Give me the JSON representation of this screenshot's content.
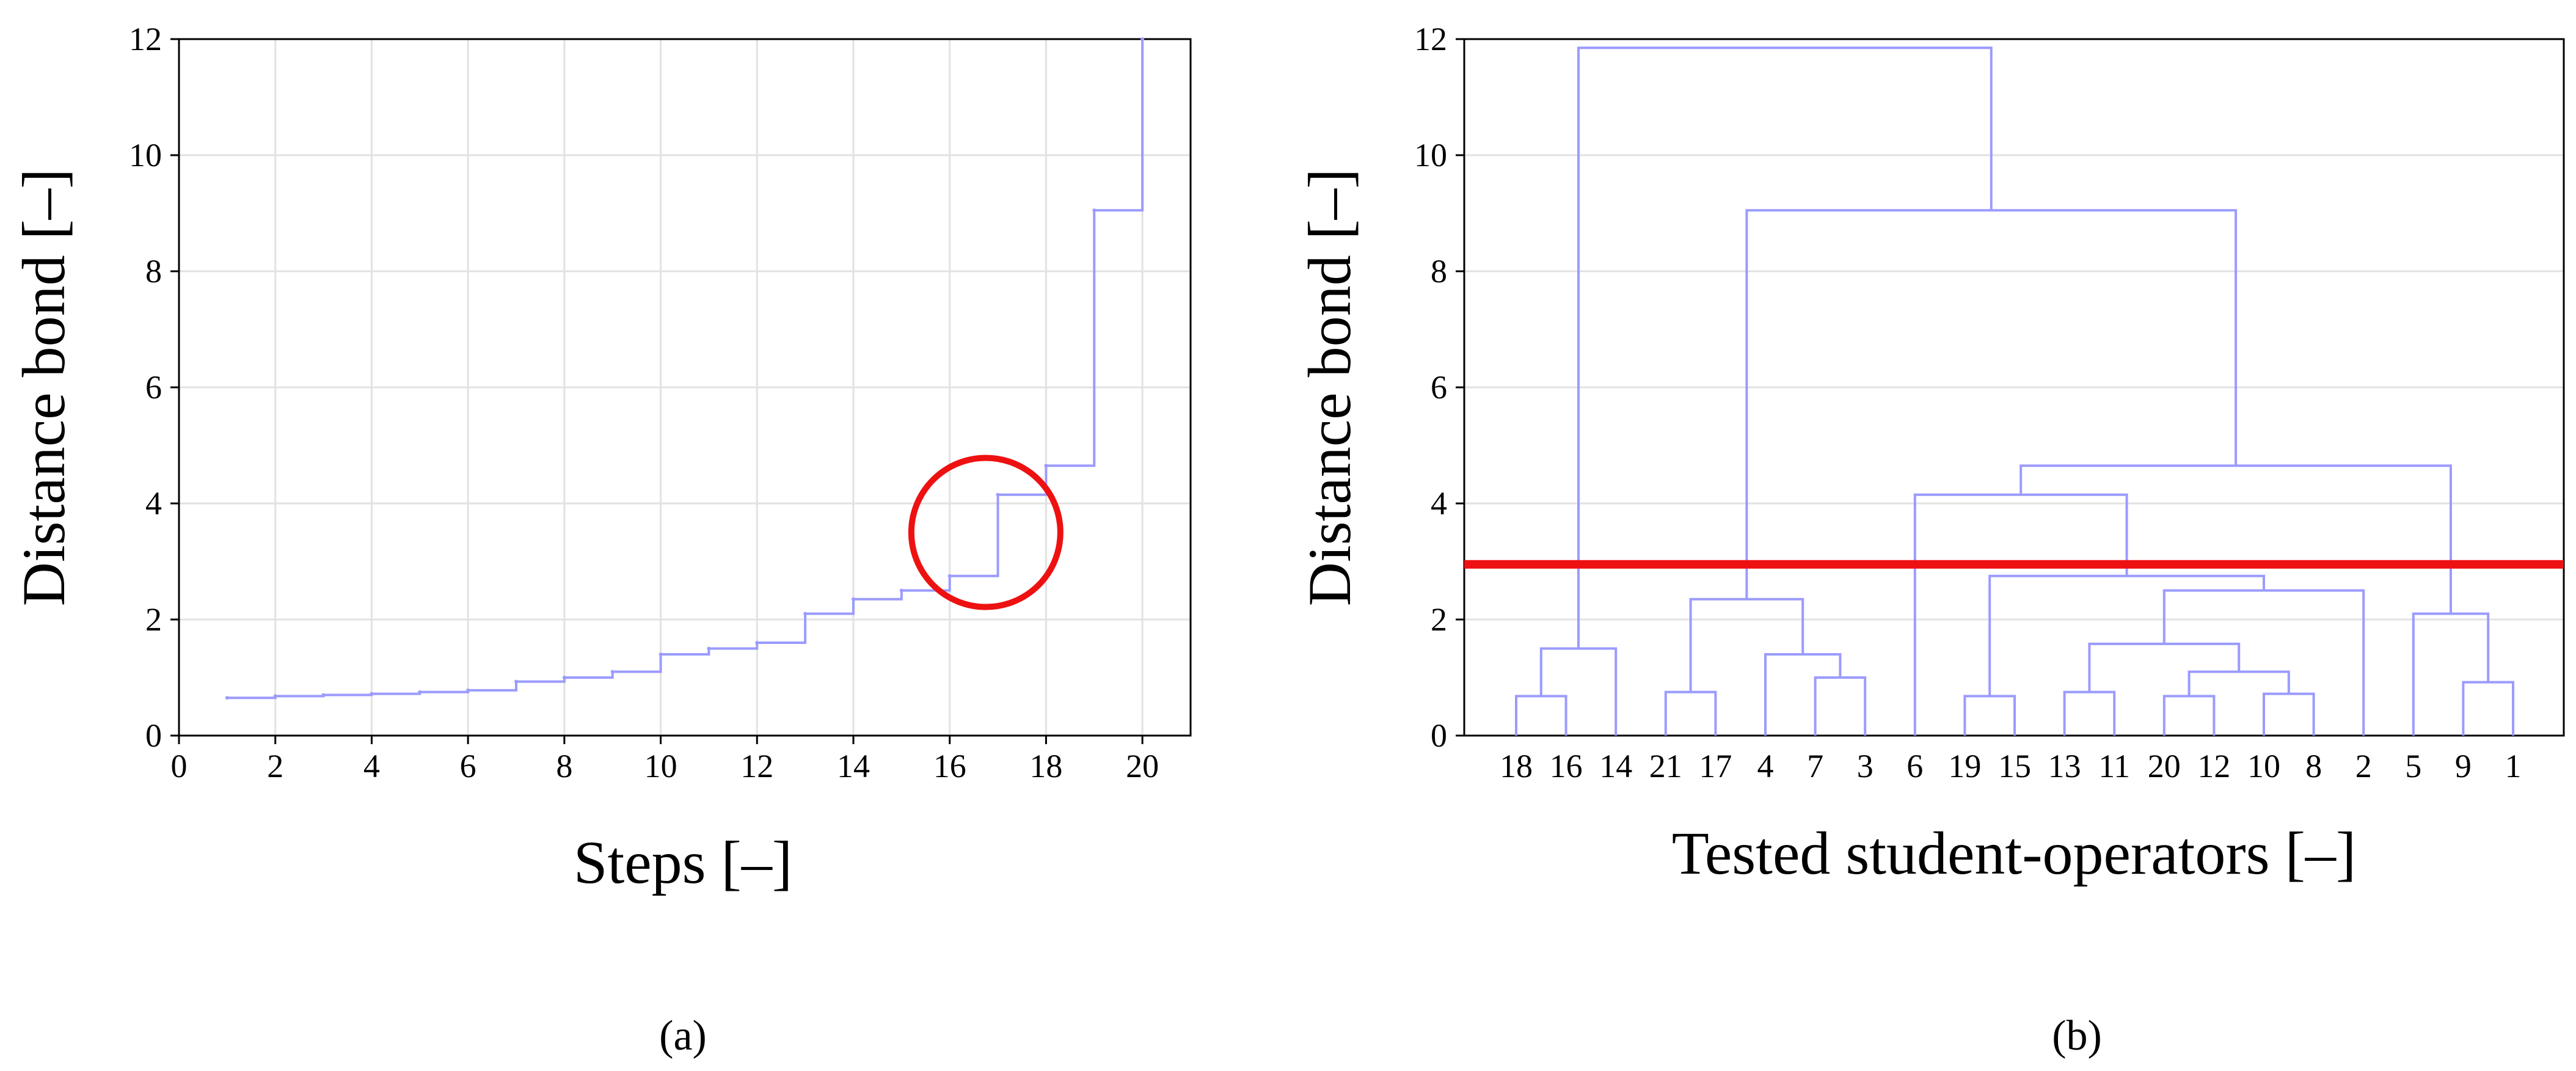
{
  "chart_data": [
    {
      "type": "line",
      "panel_label": "(a)",
      "xlabel": "Steps [–]",
      "ylabel": "Distance bond [–]",
      "xlim": [
        0,
        21
      ],
      "ylim": [
        0,
        12
      ],
      "xticks": [
        "0",
        "2",
        "4",
        "6",
        "8",
        "10",
        "12",
        "14",
        "16",
        "18",
        "20"
      ],
      "yticks": [
        "0",
        "2",
        "4",
        "6",
        "8",
        "10",
        "12"
      ],
      "grid": true,
      "series": [
        {
          "x": [
            1,
            2,
            3,
            4,
            5,
            6,
            7,
            8,
            9,
            10,
            11,
            12,
            13,
            14,
            15,
            16,
            17,
            18,
            19,
            20
          ],
          "values": [
            0.65,
            0.68,
            0.7,
            0.72,
            0.75,
            0.78,
            0.93,
            1.0,
            1.1,
            1.4,
            1.5,
            1.6,
            2.1,
            2.35,
            2.5,
            2.75,
            4.15,
            4.65,
            9.05,
            12.0
          ]
        }
      ],
      "annotation": "circle",
      "colors": {
        "line": "#9b9bff",
        "circle": "#ee1111"
      }
    },
    {
      "type": "dendrogram",
      "panel_label": "(b)",
      "xlabel": "Tested student-operators [–]",
      "ylabel": "Distance bond [–]",
      "ylim": [
        0,
        12
      ],
      "yticks": [
        "0",
        "2",
        "4",
        "6",
        "8",
        "10",
        "12"
      ],
      "leaves": [
        "18",
        "16",
        "14",
        "21",
        "17",
        "4",
        "7",
        "3",
        "6",
        "19",
        "15",
        "13",
        "11",
        "20",
        "12",
        "10",
        "8",
        "2",
        "5",
        "9",
        "1"
      ],
      "merges": [
        {
          "a": "18",
          "b": "16",
          "height": 0.68
        },
        {
          "a": "18,16",
          "b": "14",
          "height": 1.5
        },
        {
          "a": "21",
          "b": "17",
          "height": 0.75
        },
        {
          "a": "7",
          "b": "3",
          "height": 1.0
        },
        {
          "a": "4",
          "b": "7,3",
          "height": 1.4
        },
        {
          "a": "21,17",
          "b": "4,7,3",
          "height": 2.35
        },
        {
          "a": "19",
          "b": "15",
          "height": 0.68
        },
        {
          "a": "13",
          "b": "11",
          "height": 0.75
        },
        {
          "a": "20",
          "b": "12",
          "height": 0.68
        },
        {
          "a": "10",
          "b": "8",
          "height": 0.72
        },
        {
          "a": "20,12",
          "b": "10,8",
          "height": 1.1
        },
        {
          "a": "13,11",
          "b": "20,12,10,8",
          "height": 1.58
        },
        {
          "a": "13,11,20,12,10,8",
          "b": "2",
          "height": 2.5
        },
        {
          "a": "19,15",
          "b": "13,11,20,12,10,8,2",
          "height": 2.75
        },
        {
          "a": "6",
          "b": "19,15,13,11,20,12,10,8,2",
          "height": 4.15
        },
        {
          "a": "9",
          "b": "1",
          "height": 0.92
        },
        {
          "a": "5",
          "b": "9,1",
          "height": 2.1
        },
        {
          "a": "6,19,15,13,11,20,12,10,8,2",
          "b": "5,9,1",
          "height": 4.65
        },
        {
          "a": "21,17,4,7,3",
          "b": "6,19,15,13,11,20,12,10,8,2,5,9,1",
          "height": 9.05
        },
        {
          "a": "18,16,14",
          "b": "21,17,4,7,3,6,19,15,13,11,20,12,10,8,2,5,9,1",
          "height": 11.85
        }
      ],
      "cut_line": 2.95,
      "grid": true,
      "colors": {
        "line": "#9b9bff",
        "cut": "#ee1111"
      }
    }
  ]
}
